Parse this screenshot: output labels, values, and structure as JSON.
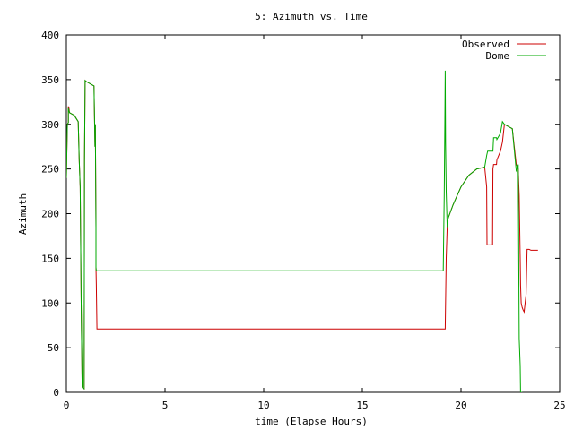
{
  "chart_data": {
    "type": "line",
    "title": "5: Azimuth vs. Time",
    "xlabel": "time (Elapse Hours)",
    "ylabel": "Azimuth",
    "xlim": [
      0,
      25
    ],
    "ylim": [
      0,
      400
    ],
    "xticks": [
      0,
      5,
      10,
      15,
      20,
      25
    ],
    "yticks": [
      0,
      50,
      100,
      150,
      200,
      250,
      300,
      350,
      400
    ],
    "grid": false,
    "legend_position": "top-right",
    "series": [
      {
        "name": "Observed",
        "color": "#cc0000",
        "x": [
          0,
          0.05,
          0.1,
          0.1,
          0.13,
          0.16,
          0.4,
          0.6,
          0.65,
          0.7,
          0.75,
          0.8,
          0.82,
          0.9,
          0.92,
          0.95,
          1.0,
          1.4,
          1.45,
          1.47,
          1.5,
          1.5,
          1.52,
          1.55,
          1.58,
          10,
          19.2,
          19.2,
          19.25,
          19.3,
          19.35,
          19.6,
          20.0,
          20.4,
          20.8,
          21.2,
          21.3,
          21.32,
          21.35,
          21.38,
          21.6,
          21.62,
          21.65,
          21.8,
          21.82,
          22.0,
          22.1,
          22.2,
          22.6,
          22.8,
          22.85,
          22.9,
          22.95,
          23.0,
          23.02,
          23.05,
          23.1,
          23.15,
          23.2,
          23.3,
          23.35,
          23.45,
          23.55,
          23.9
        ],
        "y": [
          240,
          300,
          302,
          320,
          318,
          313,
          310,
          303,
          260,
          230,
          100,
          6,
          5,
          4,
          260,
          349,
          348,
          343,
          275,
          300,
          185,
          140,
          120,
          71,
          71,
          71,
          71,
          71,
          150,
          185,
          195,
          210,
          230,
          243,
          250,
          252,
          230,
          165,
          165,
          165,
          165,
          250,
          255,
          255,
          260,
          270,
          280,
          300,
          295,
          255,
          253,
          250,
          220,
          150,
          120,
          100,
          95,
          92,
          90,
          110,
          160,
          160,
          159,
          159
        ]
      },
      {
        "name": "Dome",
        "color": "#00aa00",
        "x": [
          0,
          0.05,
          0.1,
          0.1,
          0.13,
          0.16,
          0.4,
          0.6,
          0.65,
          0.7,
          0.75,
          0.8,
          0.82,
          0.9,
          0.92,
          0.95,
          1.0,
          1.4,
          1.45,
          1.47,
          1.5,
          1.5,
          1.52,
          1.55,
          1.58,
          10,
          19.1,
          19.15,
          19.18,
          19.2,
          19.22,
          19.25,
          19.3,
          19.35,
          19.6,
          20.0,
          20.4,
          20.8,
          21.2,
          21.3,
          21.35,
          21.6,
          21.62,
          21.65,
          21.8,
          21.82,
          22.0,
          22.1,
          22.2,
          22.6,
          22.8,
          22.85,
          22.9,
          22.95,
          23.0,
          23.02,
          23.05,
          23.1
        ],
        "y": [
          240,
          300,
          302,
          318,
          315,
          313,
          310,
          303,
          260,
          230,
          100,
          6,
          5,
          4,
          260,
          349,
          348,
          343,
          275,
          300,
          185,
          140,
          136,
          136,
          136,
          136,
          136,
          220,
          305,
          360,
          280,
          225,
          185,
          195,
          210,
          230,
          243,
          250,
          252,
          265,
          270,
          270,
          270,
          285,
          285,
          283,
          290,
          303,
          300,
          295,
          248,
          250,
          255,
          60,
          30,
          0,
          0,
          0
        ]
      }
    ]
  }
}
